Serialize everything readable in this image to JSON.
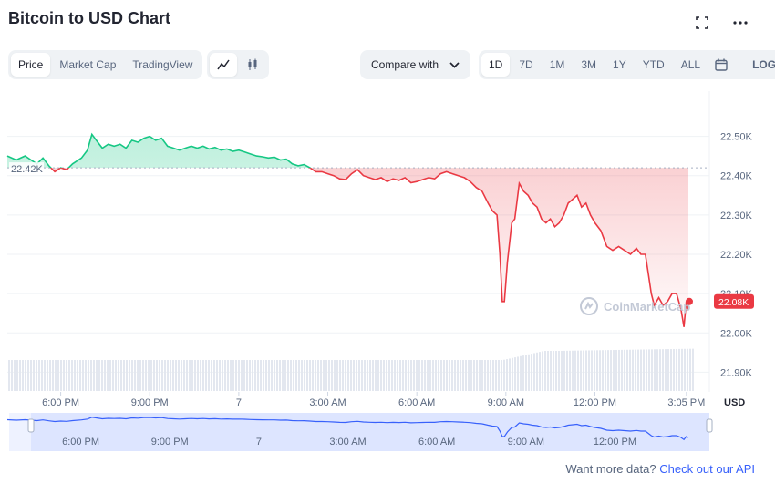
{
  "title": "Bitcoin to USD Chart",
  "top_icons": {
    "fullscreen": "fullscreen-icon",
    "more": "more-icon"
  },
  "view_tabs": [
    "Price",
    "Market Cap",
    "TradingView"
  ],
  "active_view": "Price",
  "chart_style_icons": [
    "line-chart-icon",
    "candlestick-icon"
  ],
  "compare": {
    "label": "Compare with"
  },
  "ranges": [
    "1D",
    "7D",
    "1M",
    "3M",
    "1Y",
    "YTD",
    "ALL"
  ],
  "active_range": "1D",
  "scale_label": "LOG",
  "currency_label": "USD",
  "watermark": "CoinMarketCap",
  "footer": {
    "text": "Want more data?",
    "link": "Check out our API"
  },
  "colors": {
    "up": "#16c784",
    "down": "#ea3943",
    "accent": "#3861fb"
  },
  "chart_data": {
    "type": "line",
    "title": "Bitcoin to USD Chart",
    "ylabel": "USD",
    "ylim": [
      21.85,
      22.55
    ],
    "y_ticks": [
      {
        "value": 22.5,
        "label": "22.50K"
      },
      {
        "value": 22.4,
        "label": "22.40K"
      },
      {
        "value": 22.3,
        "label": "22.30K"
      },
      {
        "value": 22.2,
        "label": "22.20K"
      },
      {
        "value": 22.1,
        "label": "22.10K"
      },
      {
        "value": 22.0,
        "label": "22.00K"
      },
      {
        "value": 21.9,
        "label": "21.90K"
      }
    ],
    "x_ticks": [
      {
        "t": 18.0,
        "label": "6:00 PM"
      },
      {
        "t": 21.0,
        "label": "9:00 PM"
      },
      {
        "t": 24.0,
        "label": "7"
      },
      {
        "t": 27.0,
        "label": "3:00 AM"
      },
      {
        "t": 30.0,
        "label": "6:00 AM"
      },
      {
        "t": 33.0,
        "label": "9:00 AM"
      },
      {
        "t": 36.0,
        "label": "12:00 PM"
      },
      {
        "t": 39.0833,
        "label": "3:05 PM"
      }
    ],
    "baseline": {
      "value": 22.42,
      "label": "22.42K"
    },
    "current": {
      "value": 22.08,
      "label": "22.08K"
    },
    "series": [
      {
        "values": [
          [
            16.2,
            22.45
          ],
          [
            16.5,
            22.44
          ],
          [
            16.8,
            22.45
          ],
          [
            17.0,
            22.44
          ],
          [
            17.2,
            22.43
          ],
          [
            17.4,
            22.445
          ],
          [
            17.6,
            22.425
          ],
          [
            17.8,
            22.41
          ],
          [
            18.0,
            22.42
          ],
          [
            18.2,
            22.415
          ],
          [
            18.4,
            22.43
          ],
          [
            18.7,
            22.445
          ],
          [
            18.9,
            22.465
          ],
          [
            19.05,
            22.505
          ],
          [
            19.2,
            22.49
          ],
          [
            19.4,
            22.47
          ],
          [
            19.6,
            22.48
          ],
          [
            19.8,
            22.475
          ],
          [
            20.0,
            22.48
          ],
          [
            20.2,
            22.47
          ],
          [
            20.4,
            22.49
          ],
          [
            20.6,
            22.485
          ],
          [
            20.8,
            22.495
          ],
          [
            21.0,
            22.5
          ],
          [
            21.2,
            22.49
          ],
          [
            21.4,
            22.495
          ],
          [
            21.6,
            22.475
          ],
          [
            21.8,
            22.47
          ],
          [
            22.0,
            22.465
          ],
          [
            22.2,
            22.47
          ],
          [
            22.4,
            22.475
          ],
          [
            22.6,
            22.47
          ],
          [
            22.8,
            22.475
          ],
          [
            23.0,
            22.468
          ],
          [
            23.2,
            22.472
          ],
          [
            23.4,
            22.465
          ],
          [
            23.6,
            22.468
          ],
          [
            23.8,
            22.462
          ],
          [
            24.0,
            22.465
          ],
          [
            24.2,
            22.46
          ],
          [
            24.4,
            22.455
          ],
          [
            24.6,
            22.45
          ],
          [
            24.8,
            22.448
          ],
          [
            25.0,
            22.445
          ],
          [
            25.2,
            22.447
          ],
          [
            25.4,
            22.44
          ],
          [
            25.6,
            22.442
          ],
          [
            25.8,
            22.43
          ],
          [
            26.0,
            22.425
          ],
          [
            26.2,
            22.428
          ],
          [
            26.4,
            22.42
          ],
          [
            26.6,
            22.41
          ],
          [
            26.8,
            22.41
          ],
          [
            27.0,
            22.405
          ],
          [
            27.2,
            22.4
          ],
          [
            27.4,
            22.392
          ],
          [
            27.6,
            22.39
          ],
          [
            27.8,
            22.405
          ],
          [
            28.0,
            22.415
          ],
          [
            28.2,
            22.4
          ],
          [
            28.4,
            22.395
          ],
          [
            28.6,
            22.39
          ],
          [
            28.8,
            22.395
          ],
          [
            29.0,
            22.385
          ],
          [
            29.2,
            22.392
          ],
          [
            29.4,
            22.388
          ],
          [
            29.6,
            22.395
          ],
          [
            29.8,
            22.382
          ],
          [
            30.0,
            22.385
          ],
          [
            30.2,
            22.39
          ],
          [
            30.4,
            22.395
          ],
          [
            30.6,
            22.392
          ],
          [
            30.8,
            22.405
          ],
          [
            31.0,
            22.41
          ],
          [
            31.2,
            22.405
          ],
          [
            31.4,
            22.4
          ],
          [
            31.6,
            22.395
          ],
          [
            31.8,
            22.385
          ],
          [
            32.0,
            22.37
          ],
          [
            32.2,
            22.36
          ],
          [
            32.4,
            22.33
          ],
          [
            32.55,
            22.31
          ],
          [
            32.7,
            22.3
          ],
          [
            32.8,
            22.2
          ],
          [
            32.88,
            22.08
          ],
          [
            32.95,
            22.08
          ],
          [
            33.05,
            22.18
          ],
          [
            33.2,
            22.28
          ],
          [
            33.3,
            22.29
          ],
          [
            33.45,
            22.38
          ],
          [
            33.6,
            22.36
          ],
          [
            33.75,
            22.35
          ],
          [
            33.9,
            22.33
          ],
          [
            34.05,
            22.32
          ],
          [
            34.2,
            22.29
          ],
          [
            34.35,
            22.28
          ],
          [
            34.5,
            22.29
          ],
          [
            34.65,
            22.27
          ],
          [
            34.8,
            22.28
          ],
          [
            34.95,
            22.3
          ],
          [
            35.1,
            22.33
          ],
          [
            35.25,
            22.34
          ],
          [
            35.4,
            22.35
          ],
          [
            35.55,
            22.32
          ],
          [
            35.7,
            22.33
          ],
          [
            35.85,
            22.3
          ],
          [
            36.0,
            22.28
          ],
          [
            36.2,
            22.26
          ],
          [
            36.4,
            22.22
          ],
          [
            36.6,
            22.21
          ],
          [
            36.8,
            22.22
          ],
          [
            37.0,
            22.21
          ],
          [
            37.2,
            22.2
          ],
          [
            37.4,
            22.215
          ],
          [
            37.55,
            22.2
          ],
          [
            37.7,
            22.2
          ],
          [
            37.8,
            22.15
          ],
          [
            37.9,
            22.1
          ],
          [
            38.0,
            22.07
          ],
          [
            38.15,
            22.09
          ],
          [
            38.3,
            22.07
          ],
          [
            38.45,
            22.08
          ],
          [
            38.6,
            22.1
          ],
          [
            38.75,
            22.1
          ],
          [
            38.9,
            22.06
          ],
          [
            39.0,
            22.015
          ],
          [
            39.08,
            22.08
          ],
          [
            39.15,
            22.06
          ]
        ]
      }
    ]
  }
}
